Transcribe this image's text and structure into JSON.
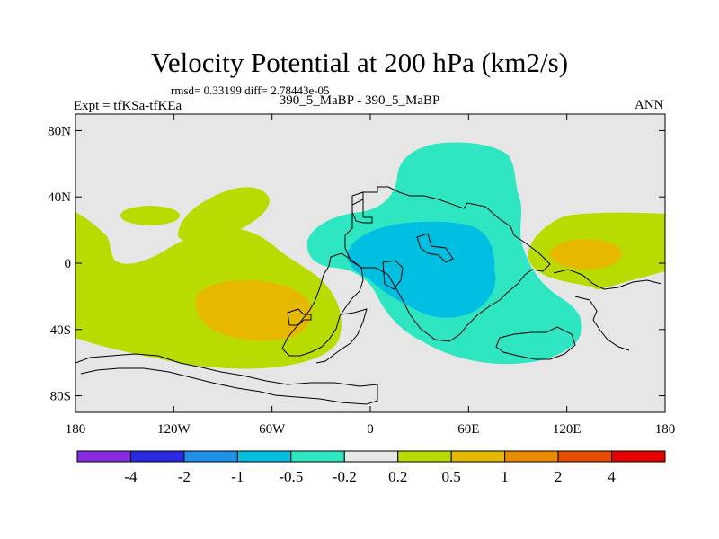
{
  "chart_data": {
    "type": "contour-map",
    "title": "Velocity Potential at 200 hPa (km2/s)",
    "stats_line": "rmsd= 0.33199 diff= 2.78443e-05",
    "left_label": "Expt = tfKSa-tfKEa",
    "center_label": "390_5_MaBP - 390_5_MaBP",
    "right_label": "ANN",
    "x_ticks": [
      "180",
      "120W",
      "60W",
      "0",
      "60E",
      "120E",
      "180"
    ],
    "x_tick_values": [
      -180,
      -120,
      -60,
      0,
      60,
      120,
      180
    ],
    "y_ticks": [
      "80N",
      "40N",
      "0",
      "40S",
      "80S"
    ],
    "y_tick_values": [
      80,
      40,
      0,
      -40,
      -80
    ],
    "xlim": [
      -180,
      180
    ],
    "ylim": [
      -90,
      90
    ],
    "colorbar_levels": [
      "-4",
      "-2",
      "-1",
      "-0.5",
      "-0.2",
      "0.2",
      "0.5",
      "1",
      "2",
      "4"
    ],
    "colorbar_colors": [
      "#8a2be2",
      "#2a2ae0",
      "#1e90e6",
      "#00bfe0",
      "#2ee6c2",
      "#e6e6e6",
      "#b8dc00",
      "#e6b800",
      "#e68a00",
      "#e64d00",
      "#e60000"
    ],
    "features": [
      {
        "name": "negative-anomaly-africa-indian-ocean",
        "level": "-1 to -0.5",
        "center_lon": 45,
        "center_lat": 2
      },
      {
        "name": "negative-anomaly-broad-eastern-hemisphere",
        "level": "-0.5 to -0.2",
        "center_lon": 40,
        "center_lat": 10
      },
      {
        "name": "positive-anomaly-south-pacific",
        "level": "0.5 to 1",
        "center_lon": -70,
        "center_lat": -27
      },
      {
        "name": "positive-anomaly-western-pacific",
        "level": "0.5 to 1",
        "center_lon": 128,
        "center_lat": 8
      },
      {
        "name": "positive-anomaly-pacific-band",
        "level": "0.2 to 0.5",
        "center_lon": -100,
        "center_lat": -20
      }
    ]
  }
}
